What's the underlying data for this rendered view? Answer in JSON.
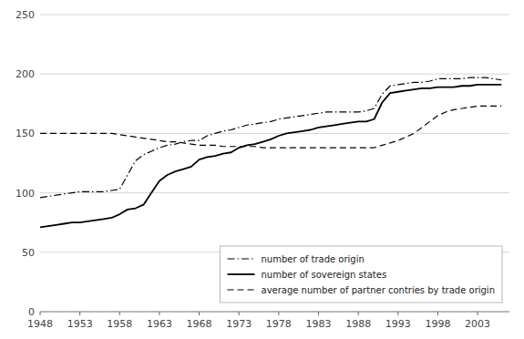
{
  "chart_data": {
    "type": "line",
    "x": [
      1948,
      1949,
      1950,
      1951,
      1952,
      1953,
      1954,
      1955,
      1956,
      1957,
      1958,
      1959,
      1960,
      1961,
      1962,
      1963,
      1964,
      1965,
      1966,
      1967,
      1968,
      1969,
      1970,
      1971,
      1972,
      1973,
      1974,
      1975,
      1976,
      1977,
      1978,
      1979,
      1980,
      1981,
      1982,
      1983,
      1984,
      1985,
      1986,
      1987,
      1988,
      1989,
      1990,
      1991,
      1992,
      1993,
      1994,
      1995,
      1996,
      1997,
      1998,
      1999,
      2000,
      2001,
      2002,
      2003,
      2004,
      2005,
      2006
    ],
    "series": [
      {
        "name": "number of trade origin",
        "color": "#000000",
        "line_style": "dashdot",
        "values": [
          96,
          97,
          98,
          99,
          100,
          101,
          101,
          101,
          101,
          102,
          103,
          115,
          127,
          132,
          135,
          138,
          140,
          141,
          143,
          144,
          144,
          148,
          150,
          152,
          153,
          155,
          157,
          158,
          159,
          160,
          162,
          163,
          164,
          165,
          166,
          167,
          168,
          168,
          168,
          168,
          168,
          169,
          171,
          183,
          190,
          191,
          192,
          193,
          193,
          194,
          196,
          196,
          196,
          196,
          197,
          197,
          197,
          196,
          195
        ]
      },
      {
        "name": "number of sovereign states",
        "color": "#000000",
        "line_style": "solid",
        "values": [
          71,
          72,
          73,
          74,
          75,
          75,
          76,
          77,
          78,
          79,
          82,
          86,
          87,
          90,
          100,
          110,
          115,
          118,
          120,
          122,
          128,
          130,
          131,
          133,
          134,
          138,
          140,
          141,
          143,
          145,
          148,
          150,
          151,
          152,
          153,
          155,
          156,
          157,
          158,
          159,
          160,
          160,
          162,
          176,
          184,
          185,
          186,
          187,
          188,
          188,
          189,
          189,
          189,
          190,
          190,
          191,
          191,
          191,
          191
        ]
      },
      {
        "name": "average number of partner contries by trade origin",
        "color": "#000000",
        "line_style": "dashed",
        "values": [
          150,
          150,
          150,
          150,
          150,
          150,
          150,
          150,
          150,
          150,
          149,
          148,
          147,
          146,
          145,
          144,
          143,
          143,
          142,
          141,
          140,
          140,
          140,
          139,
          139,
          139,
          139,
          139,
          138,
          138,
          138,
          138,
          138,
          138,
          138,
          138,
          138,
          138,
          138,
          138,
          138,
          138,
          138,
          140,
          142,
          144,
          147,
          150,
          155,
          160,
          165,
          168,
          170,
          171,
          172,
          173,
          173,
          173,
          173
        ]
      }
    ],
    "xlim": [
      1948,
      2007
    ],
    "ylim": [
      0,
      250
    ],
    "yticks": [
      0,
      50,
      100,
      150,
      200,
      250
    ],
    "xticks": [
      1948,
      1953,
      1958,
      1963,
      1968,
      1973,
      1978,
      1983,
      1988,
      1993,
      1998,
      2003
    ],
    "grid": "y",
    "legend": "lower right"
  }
}
